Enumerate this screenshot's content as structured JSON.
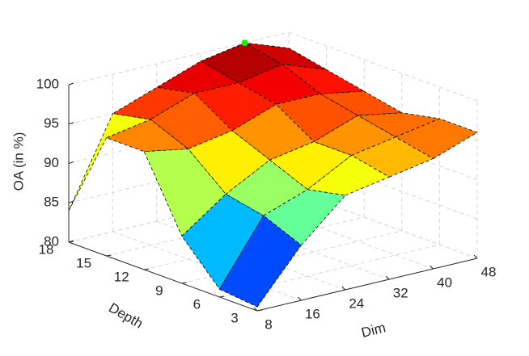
{
  "chart_data": {
    "type": "surface",
    "xlabel": "Dim",
    "ylabel": "Depth",
    "zlabel": "OA (in %)",
    "x": [
      8,
      16,
      24,
      32,
      40,
      48
    ],
    "y": [
      3,
      6,
      9,
      12,
      15,
      18
    ],
    "z": [
      [
        80.5,
        87,
        92,
        93,
        94,
        96
      ],
      [
        81,
        89,
        91,
        94,
        95,
        96
      ],
      [
        86,
        90,
        93,
        94,
        96,
        95
      ],
      [
        95,
        94,
        95,
        97,
        97,
        96
      ],
      [
        95,
        96,
        98,
        98,
        99,
        97
      ],
      [
        84,
        95,
        97,
        99,
        100,
        98
      ]
    ],
    "xlim": [
      8,
      48
    ],
    "ylim": [
      3,
      18
    ],
    "zlim": [
      80,
      100
    ],
    "xticks": [
      8,
      16,
      24,
      32,
      40,
      48
    ],
    "yticks": [
      3,
      6,
      9,
      12,
      15,
      18
    ],
    "zticks": [
      80,
      85,
      90,
      95,
      100
    ],
    "colormap": "jet",
    "grid": true,
    "highlight": {
      "x": 40,
      "y": 18,
      "z": 100,
      "color": "#00ff00"
    }
  }
}
